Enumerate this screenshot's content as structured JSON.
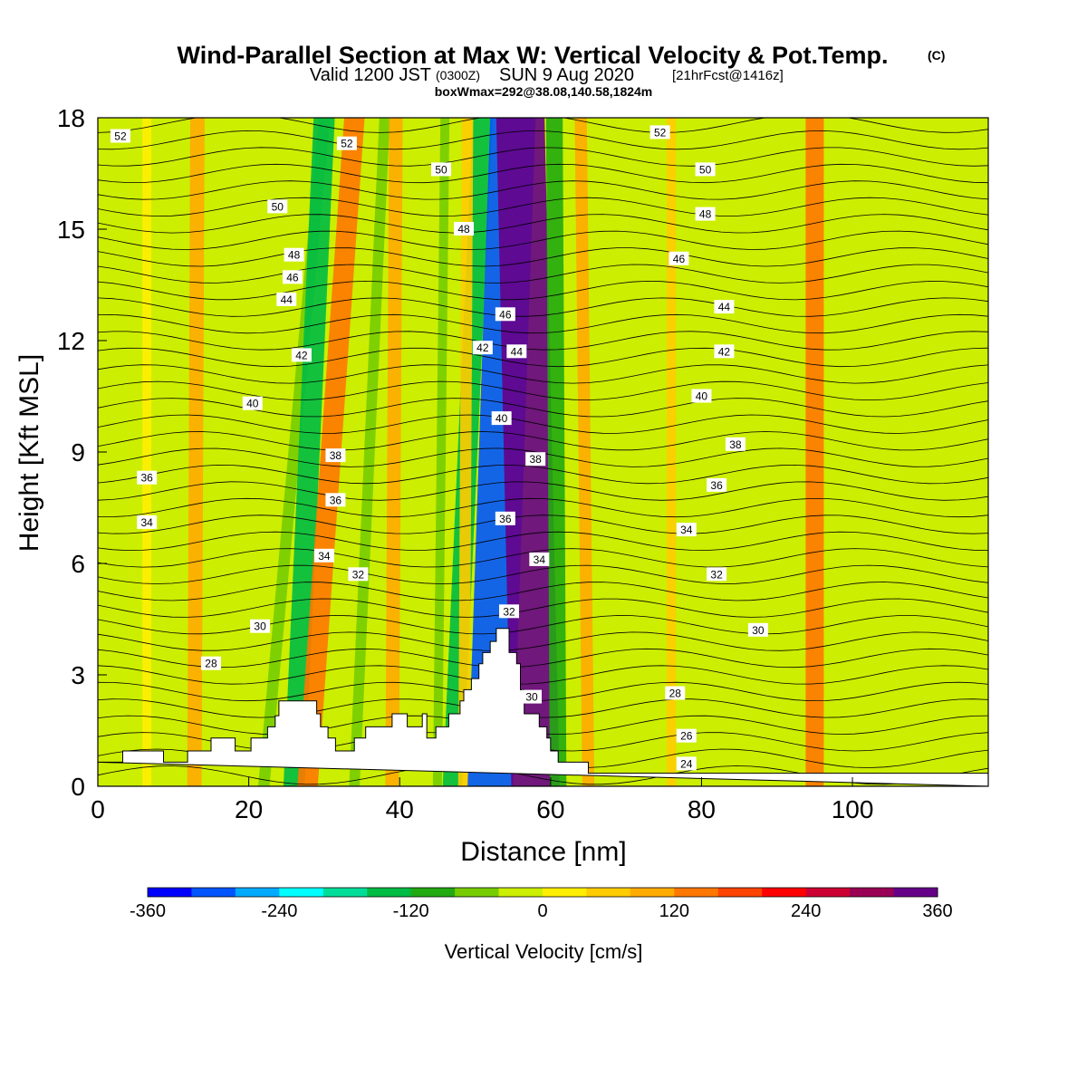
{
  "chart_data": {
    "type": "heatmap",
    "title_main": "Wind-Parallel Section at Max W: Vertical Velocity & Pot.Temp.",
    "title_copyright": "(C)",
    "subtitle_valid": "Valid 1200 JST",
    "subtitle_utc": "(0300Z)",
    "subtitle_date": "SUN 9 Aug 2020",
    "subtitle_fcst": "[21hrFcst@1416z]",
    "subtitle_box": "boxWmax=292@38.08,140.58,1824m",
    "xlabel": "Distance [nm]",
    "ylabel": "Height [Kft MSL]",
    "xlim": [
      0,
      118
    ],
    "ylim": [
      0,
      18
    ],
    "x_ticks": [
      "0",
      "20",
      "40",
      "60",
      "80",
      "100"
    ],
    "y_ticks": [
      "0",
      "3",
      "6",
      "9",
      "12",
      "15",
      "18"
    ],
    "colorbar": {
      "label": "Vertical Velocity [cm/s]",
      "range": [
        -360,
        360
      ],
      "tick_labels": [
        "-360",
        "-240",
        "-120",
        "0",
        "120",
        "240",
        "360"
      ],
      "colors": [
        "#0000ff",
        "#0055ff",
        "#00aaff",
        "#00ffff",
        "#00dd99",
        "#00bb44",
        "#22aa11",
        "#77cc00",
        "#ccee00",
        "#ffee00",
        "#ffcc00",
        "#ffaa00",
        "#ff7700",
        "#ff4400",
        "#ff0000",
        "#cc0033",
        "#990055",
        "#660088"
      ]
    },
    "bands": [
      {
        "x0": 1,
        "x1": 18,
        "w": -15
      },
      {
        "x0": 6.5,
        "x1": 6.5,
        "w": 20
      },
      {
        "x0": 12.8,
        "x1": 13.2,
        "w": 95
      },
      {
        "x0": 16.6,
        "x1": 16.6,
        "w": -40
      },
      {
        "x0": 22,
        "x1": 30,
        "w": -75
      },
      {
        "x0": 26,
        "x1": 30,
        "w": -140
      },
      {
        "x0": 27.8,
        "x1": 34,
        "w": 135
      },
      {
        "x0": 34,
        "x1": 38,
        "w": -70
      },
      {
        "x0": 39,
        "x1": 39.5,
        "w": 90
      },
      {
        "x0": 45,
        "x1": 46,
        "w": -55
      },
      {
        "x0": 47,
        "x1": 51,
        "w": -130
      },
      {
        "x0": 48.5,
        "x1": 49,
        "w": 75
      },
      {
        "x0": 52,
        "x1": 55,
        "w": -300
      },
      {
        "x0": 58,
        "x1": 56,
        "w": 320
      },
      {
        "x0": 61,
        "x1": 60.5,
        "w": -110
      },
      {
        "x0": 65,
        "x1": 64,
        "w": 80
      },
      {
        "x0": 76,
        "x1": 76,
        "w": 60
      },
      {
        "x0": 95,
        "x1": 95,
        "w": 120
      }
    ],
    "theta_line_labels": [
      {
        "x": 3,
        "y": 17.5,
        "label": "52"
      },
      {
        "x": 33,
        "y": 17.3,
        "label": "52"
      },
      {
        "x": 74.5,
        "y": 17.6,
        "label": "52"
      },
      {
        "x": 45.5,
        "y": 16.6,
        "label": "50"
      },
      {
        "x": 80.5,
        "y": 16.6,
        "label": "50"
      },
      {
        "x": 23.8,
        "y": 15.6,
        "label": "50"
      },
      {
        "x": 48.5,
        "y": 15,
        "label": "48"
      },
      {
        "x": 80.5,
        "y": 15.4,
        "label": "48"
      },
      {
        "x": 26,
        "y": 14.3,
        "label": "48"
      },
      {
        "x": 77,
        "y": 14.2,
        "label": "46"
      },
      {
        "x": 25.8,
        "y": 13.7,
        "label": "46"
      },
      {
        "x": 54,
        "y": 12.7,
        "label": "46"
      },
      {
        "x": 25,
        "y": 13.1,
        "label": "44"
      },
      {
        "x": 83,
        "y": 12.9,
        "label": "44"
      },
      {
        "x": 55.5,
        "y": 11.7,
        "label": "44"
      },
      {
        "x": 51,
        "y": 11.8,
        "label": "42"
      },
      {
        "x": 27,
        "y": 11.6,
        "label": "42"
      },
      {
        "x": 83,
        "y": 11.7,
        "label": "42"
      },
      {
        "x": 20.5,
        "y": 10.3,
        "label": "40"
      },
      {
        "x": 80,
        "y": 10.5,
        "label": "40"
      },
      {
        "x": 53.5,
        "y": 9.9,
        "label": "40"
      },
      {
        "x": 84.5,
        "y": 9.2,
        "label": "38"
      },
      {
        "x": 31.5,
        "y": 8.9,
        "label": "38"
      },
      {
        "x": 58,
        "y": 8.8,
        "label": "38"
      },
      {
        "x": 6.5,
        "y": 8.3,
        "label": "36"
      },
      {
        "x": 31.5,
        "y": 7.7,
        "label": "36"
      },
      {
        "x": 82,
        "y": 8.1,
        "label": "36"
      },
      {
        "x": 54,
        "y": 7.2,
        "label": "36"
      },
      {
        "x": 6.5,
        "y": 7.1,
        "label": "34"
      },
      {
        "x": 78,
        "y": 6.9,
        "label": "34"
      },
      {
        "x": 30,
        "y": 6.2,
        "label": "34"
      },
      {
        "x": 58.5,
        "y": 6.1,
        "label": "34"
      },
      {
        "x": 34.5,
        "y": 5.7,
        "label": "32"
      },
      {
        "x": 82,
        "y": 5.7,
        "label": "32"
      },
      {
        "x": 54.5,
        "y": 4.7,
        "label": "32"
      },
      {
        "x": 87.5,
        "y": 4.2,
        "label": "30"
      },
      {
        "x": 21.5,
        "y": 4.3,
        "label": "30"
      },
      {
        "x": 57.5,
        "y": 2.4,
        "label": "30"
      },
      {
        "x": 15,
        "y": 3.3,
        "label": "28"
      },
      {
        "x": 76.5,
        "y": 2.5,
        "label": "28"
      },
      {
        "x": 78,
        "y": 1.35,
        "label": "26"
      },
      {
        "x": 78,
        "y": 0.6,
        "label": "24"
      }
    ],
    "terrain": [
      [
        0,
        0.65
      ],
      [
        3.3,
        0.65
      ],
      [
        3.3,
        0.95
      ],
      [
        8.7,
        0.95
      ],
      [
        8.7,
        0.65
      ],
      [
        11.9,
        0.65
      ],
      [
        11.9,
        0.95
      ],
      [
        15,
        0.95
      ],
      [
        15,
        1.3
      ],
      [
        18.2,
        1.3
      ],
      [
        18.2,
        0.95
      ],
      [
        20.3,
        0.95
      ],
      [
        20.3,
        1.3
      ],
      [
        22.5,
        1.3
      ],
      [
        22.5,
        1.6
      ],
      [
        23.5,
        1.6
      ],
      [
        23.5,
        1.9
      ],
      [
        24,
        1.9
      ],
      [
        24,
        2.3
      ],
      [
        29,
        2.3
      ],
      [
        29,
        1.95
      ],
      [
        29.5,
        1.95
      ],
      [
        29.5,
        1.6
      ],
      [
        30.5,
        1.6
      ],
      [
        30.5,
        1.3
      ],
      [
        31.5,
        1.3
      ],
      [
        31.5,
        0.95
      ],
      [
        34,
        0.95
      ],
      [
        34,
        1.3
      ],
      [
        35.5,
        1.3
      ],
      [
        35.5,
        1.6
      ],
      [
        39,
        1.6
      ],
      [
        39,
        1.95
      ],
      [
        41,
        1.95
      ],
      [
        41,
        1.6
      ],
      [
        43,
        1.6
      ],
      [
        43,
        1.95
      ],
      [
        43.6,
        1.95
      ],
      [
        43.6,
        1.3
      ],
      [
        44.8,
        1.3
      ],
      [
        44.8,
        1.6
      ],
      [
        46.5,
        1.6
      ],
      [
        46.5,
        1.95
      ],
      [
        48,
        1.95
      ],
      [
        48,
        2.3
      ],
      [
        48.5,
        2.3
      ],
      [
        48.5,
        2.6
      ],
      [
        49.5,
        2.6
      ],
      [
        49.5,
        2.9
      ],
      [
        50.5,
        2.9
      ],
      [
        50.5,
        3.3
      ],
      [
        51,
        3.3
      ],
      [
        51,
        3.6
      ],
      [
        52,
        3.6
      ],
      [
        52,
        3.9
      ],
      [
        52.8,
        3.9
      ],
      [
        52.8,
        4.25
      ],
      [
        54.5,
        4.25
      ],
      [
        54.5,
        3.6
      ],
      [
        55.5,
        3.6
      ],
      [
        55.5,
        3.3
      ],
      [
        56,
        3.3
      ],
      [
        56,
        2.6
      ],
      [
        56.5,
        2.6
      ],
      [
        56.5,
        1.95
      ],
      [
        58.5,
        1.95
      ],
      [
        58.5,
        1.6
      ],
      [
        59.5,
        1.6
      ],
      [
        59.5,
        1.3
      ],
      [
        60,
        1.3
      ],
      [
        60,
        0.95
      ],
      [
        61,
        0.95
      ],
      [
        61,
        0.65
      ],
      [
        65,
        0.65
      ],
      [
        65,
        0.35
      ],
      [
        118,
        0.35
      ],
      [
        118,
        0
      ]
    ]
  }
}
